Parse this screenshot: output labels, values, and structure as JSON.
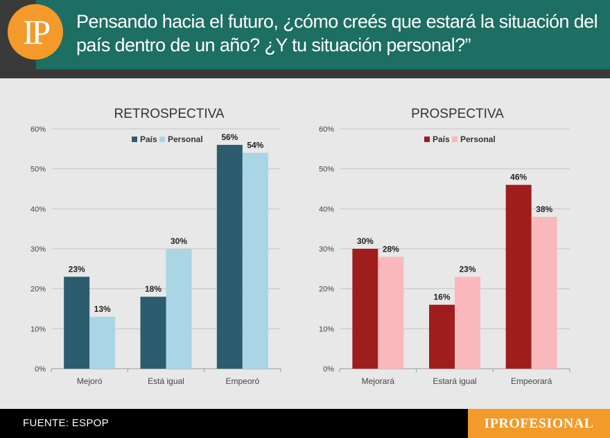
{
  "header": {
    "logo": "IP",
    "title": "Pensando hacia el futuro, ¿cómo creés que estará la situación del país dentro de un año? ¿Y tu situación personal?”"
  },
  "footer": {
    "source": "FUENTE: ESPOP",
    "brand": "IPROFESIONAL"
  },
  "chart_data": [
    {
      "type": "bar",
      "title": "RETROSPECTIVA",
      "categories": [
        "Mejoró",
        "Está igual",
        "Empeoró"
      ],
      "series": [
        {
          "name": "País",
          "values": [
            23,
            18,
            56
          ],
          "labels": [
            "23%",
            "18%",
            "56%"
          ],
          "color": "#2b5d6e"
        },
        {
          "name": "Personal",
          "values": [
            13,
            30,
            54
          ],
          "labels": [
            "13%",
            "30%",
            "54%"
          ],
          "color": "#a9d5e4"
        }
      ],
      "yticks": [
        "0%",
        "10%",
        "20%",
        "30%",
        "40%",
        "50%",
        "60%"
      ],
      "ylim": [
        0,
        60
      ],
      "grid": true,
      "legend": "top-center"
    },
    {
      "type": "bar",
      "title": "PROSPECTIVA",
      "categories": [
        "Mejorará",
        "Estará igual",
        "Empeorará"
      ],
      "series": [
        {
          "name": "País",
          "values": [
            30,
            16,
            46
          ],
          "labels": [
            "30%",
            "16%",
            "46%"
          ],
          "color": "#a01d1d"
        },
        {
          "name": "Personal",
          "values": [
            28,
            23,
            38
          ],
          "labels": [
            "28%",
            "23%",
            "38%"
          ],
          "color": "#fbb8bc"
        }
      ],
      "yticks": [
        "0%",
        "10%",
        "20%",
        "30%",
        "40%",
        "50%",
        "60%"
      ],
      "ylim": [
        0,
        60
      ],
      "grid": true,
      "legend": "top-center"
    }
  ]
}
